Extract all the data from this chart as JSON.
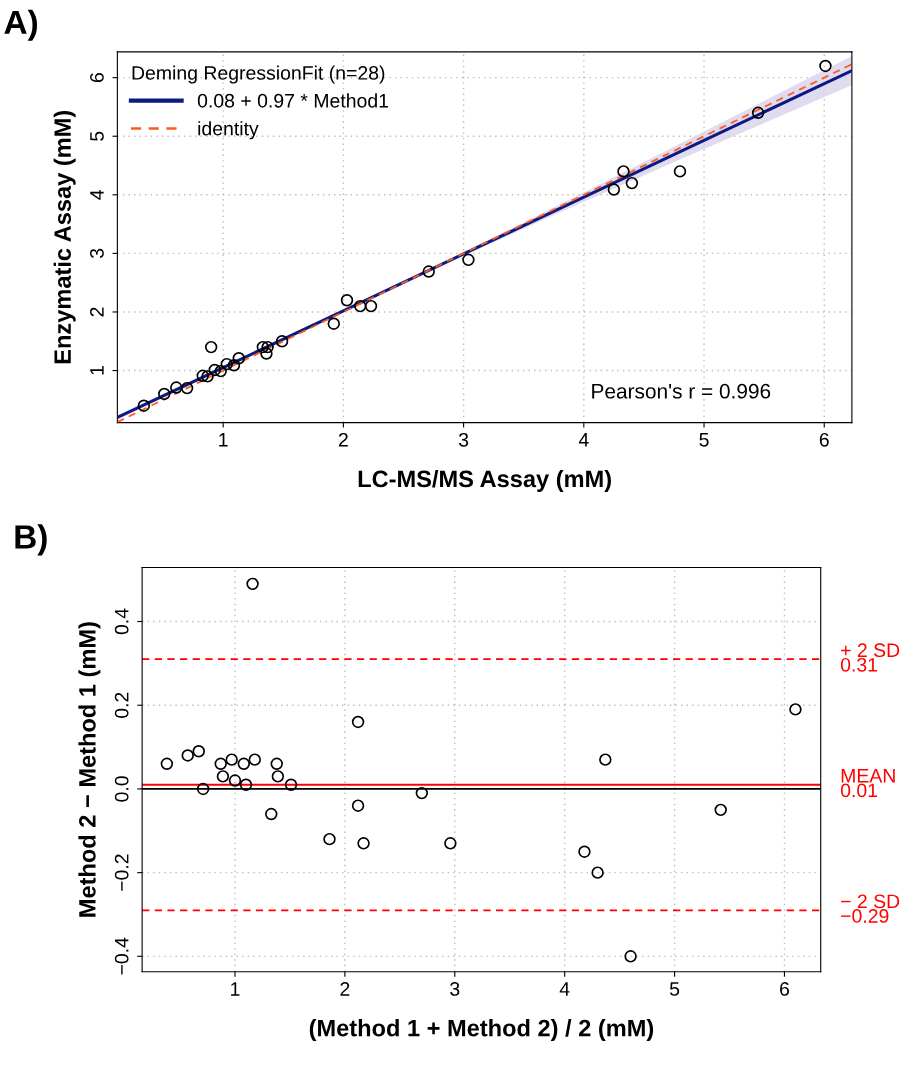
{
  "chart_data": [
    {
      "type": "scatter",
      "title": "A)",
      "xlabel": "LC-MS/MS Assay (mM)",
      "ylabel": "Enzymatic Assay (mM)",
      "legend_title": "Deming RegressionFit (n=28)",
      "legend": "top left",
      "grid": true,
      "xlim": [
        0.12,
        6.23
      ],
      "ylim": [
        0.11,
        6.44
      ],
      "xticks": [
        1,
        2,
        3,
        4,
        5,
        6
      ],
      "yticks": [
        1,
        2,
        3,
        4,
        5,
        6
      ],
      "annotations": [
        "Pearson's r = 0.996"
      ],
      "series": [
        {
          "color": "#000000",
          "marker": "circle",
          "x": [
            0.34,
            0.51,
            0.61,
            0.7,
            0.83,
            0.87,
            0.9,
            0.93,
            0.98,
            1.03,
            1.09,
            1.13,
            1.33,
            1.37,
            1.36,
            1.49,
            1.92,
            2.03,
            2.14,
            2.23,
            2.71,
            3.04,
            4.25,
            4.33,
            4.4,
            4.8,
            5.45,
            6.01
          ],
          "values": [
            0.4,
            0.6,
            0.71,
            0.7,
            0.91,
            0.9,
            1.4,
            1.01,
            0.99,
            1.11,
            1.09,
            1.21,
            1.4,
            1.4,
            1.29,
            1.5,
            1.8,
            2.2,
            2.1,
            2.1,
            2.69,
            2.89,
            4.09,
            4.4,
            4.2,
            4.4,
            5.4,
            6.2
          ]
        },
        {
          "type": "line",
          "name": "0.08 + 0.97 * Method1",
          "color": "#0d1a80",
          "line_style": "solid",
          "marker": "none",
          "x": [
            0.12,
            1,
            2,
            3,
            4,
            5,
            6.23
          ],
          "values": [
            0.2,
            1.05,
            2.02,
            2.99,
            3.96,
            4.93,
            6.12
          ],
          "lower": [
            0.16,
            1.02,
            2.0,
            2.96,
            3.88,
            4.78,
            5.87
          ],
          "upper": [
            0.24,
            1.08,
            2.04,
            3.02,
            4.04,
            5.08,
            6.37
          ]
        },
        {
          "type": "line",
          "name": "identity",
          "color": "#ff5a1f",
          "line_style": "dashed",
          "marker": "none",
          "x": [
            0.12,
            6.23
          ],
          "values": [
            0.12,
            6.23
          ]
        }
      ]
    },
    {
      "type": "scatter",
      "title": "B)",
      "xlabel": "(Method 1 + Method 2) / 2 (mM)",
      "ylabel": "Method 2 − Method 1 (mM)",
      "grid": true,
      "xlim": [
        0.155,
        6.33
      ],
      "ylim": [
        -0.437,
        0.529
      ],
      "xticks": [
        1,
        2,
        3,
        4,
        5,
        6
      ],
      "yticks": [
        {
          "value": -0.4,
          "label": "−0.4"
        },
        {
          "value": -0.2,
          "label": "−0.2"
        },
        {
          "value": 0,
          "label": "0.0"
        },
        {
          "value": 0.2,
          "label": "0.2"
        },
        {
          "value": 0.4,
          "label": "0.4"
        }
      ],
      "ref_lines": [
        {
          "axis": "y",
          "value": 0.31,
          "label": "+ 2 SD\n0.31",
          "color": "#ff0000",
          "line_style": "dashed"
        },
        {
          "axis": "y",
          "value": 0.01,
          "label": "MEAN\n0.01",
          "color": "#ff0000",
          "line_style": "solid"
        },
        {
          "axis": "y",
          "value": -0.29,
          "label": "− 2 SD\n−0.29",
          "color": "#ff0000",
          "line_style": "dashed"
        },
        {
          "axis": "y",
          "value": 0,
          "color": "#000000",
          "line_style": "solid"
        }
      ],
      "series": [
        {
          "color": "#000000",
          "marker": "circle",
          "x": [
            1.16,
            2.12,
            6.1,
            0.38,
            0.57,
            0.67,
            0.87,
            0.97,
            1.08,
            1.18,
            1.38,
            0.89,
            1.0,
            1.1,
            1.39,
            1.51,
            0.71,
            4.37,
            2.7,
            2.12,
            1.33,
            5.42,
            1.86,
            2.17,
            2.96,
            4.18,
            4.3,
            4.6
          ],
          "values": [
            0.49,
            0.16,
            0.19,
            0.06,
            0.08,
            0.09,
            0.06,
            0.07,
            0.06,
            0.07,
            0.06,
            0.03,
            0.02,
            0.01,
            0.03,
            0.01,
            0.0,
            0.07,
            -0.01,
            -0.04,
            -0.06,
            -0.05,
            -0.12,
            -0.13,
            -0.13,
            -0.15,
            -0.2,
            -0.4
          ]
        }
      ]
    }
  ]
}
